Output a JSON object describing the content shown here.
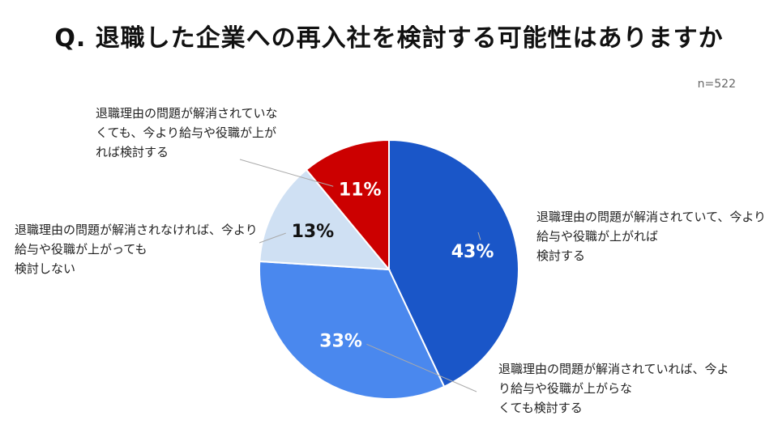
{
  "title": "Q. 退職した企業への再入社を検討する可能性はありますか",
  "sample_size": "n=522",
  "chart_data": {
    "type": "pie",
    "title": "Q. 退職した企業への再入社を検討する可能性はありますか",
    "categories": [
      "退職理由の問題が解消されていて、今より給与や役職が上がれば\n検討する",
      "退職理由の問題が解消されていれば、今より給与や役職が上がらな\nくても検討する",
      "退職理由の問題が解消されなければ、今より給与や役職が上がっても\n検討しない",
      "退職理由の問題が解消されていな\nくても、今より給与や役職が上が\nれば検討する"
    ],
    "values": [
      43,
      33,
      13,
      11
    ],
    "value_labels": [
      "43%",
      "33%",
      "13%",
      "11%"
    ],
    "colors": [
      "#1a56c8",
      "#4a88ee",
      "#cfe0f3",
      "#cc0000"
    ],
    "value_label_colors": [
      "#ffffff",
      "#ffffff",
      "#111111",
      "#ffffff"
    ]
  }
}
